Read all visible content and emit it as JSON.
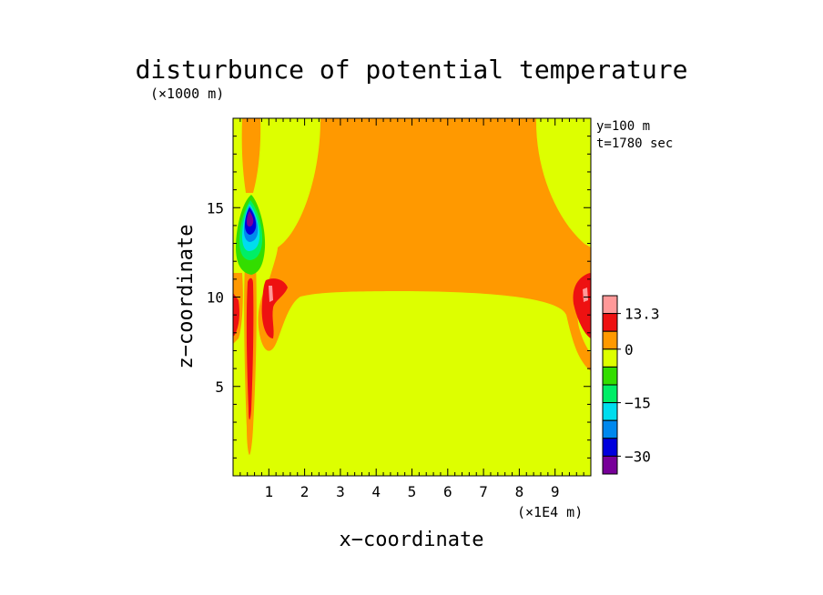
{
  "chart_data": {
    "type": "heatmap",
    "title": "disturbunce of potential temperature",
    "xlabel": "x−coordinate",
    "ylabel": "z−coordinate",
    "x_unit": "(×1E4 m)",
    "y_unit": "(×1000 m)",
    "xlim": [
      0,
      10
    ],
    "ylim": [
      0,
      20
    ],
    "x_ticks": [
      1,
      2,
      3,
      4,
      5,
      6,
      7,
      8,
      9
    ],
    "x_tick_labels": [
      "1",
      "2",
      "3",
      "4",
      "5",
      "6",
      "7",
      "8",
      "9"
    ],
    "y_ticks": [
      5,
      10,
      15
    ],
    "y_tick_labels": [
      "5",
      "10",
      "15"
    ],
    "annotations": [
      "y=100 m",
      "t=1780 sec"
    ],
    "colorbar": {
      "label_values": [
        "13.3",
        "0",
        "−15",
        "−30"
      ],
      "levels": [
        {
          "range": "above 13.3",
          "color": "#ff9999"
        },
        {
          "range": "5 to 13.3",
          "color": "#ee1111"
        },
        {
          "range": "0 to 5",
          "color": "#ff9900"
        },
        {
          "range": "-5 to 0",
          "color": "#ddff00"
        },
        {
          "range": "-10 to -5",
          "color": "#33dd00"
        },
        {
          "range": "-15 to -10",
          "color": "#00ee66"
        },
        {
          "range": "-20 to -15",
          "color": "#00ddee"
        },
        {
          "range": "-25 to -20",
          "color": "#0088ee"
        },
        {
          "range": "-30 to -25",
          "color": "#0000dd"
        },
        {
          "range": "below -30",
          "color": "#770099"
        }
      ]
    },
    "regions": [
      {
        "name": "lower layer",
        "description": "near-zero negative disturbance (-5 to 0) below z≈10 across the domain"
      },
      {
        "name": "upper plateau",
        "description": "positive disturbance (0 to 5) above z≈10 from x≈2.3 to x≈8.3"
      },
      {
        "name": "left plume",
        "description": "narrow warm column near x≈0.5 up to z≈11, with cold core reaching below -30 near z≈14"
      },
      {
        "name": "edge lobes",
        "description": "warm lobes (5 to 13.3) near x≈1 and x≈9.8 at z≈9–11"
      }
    ]
  }
}
